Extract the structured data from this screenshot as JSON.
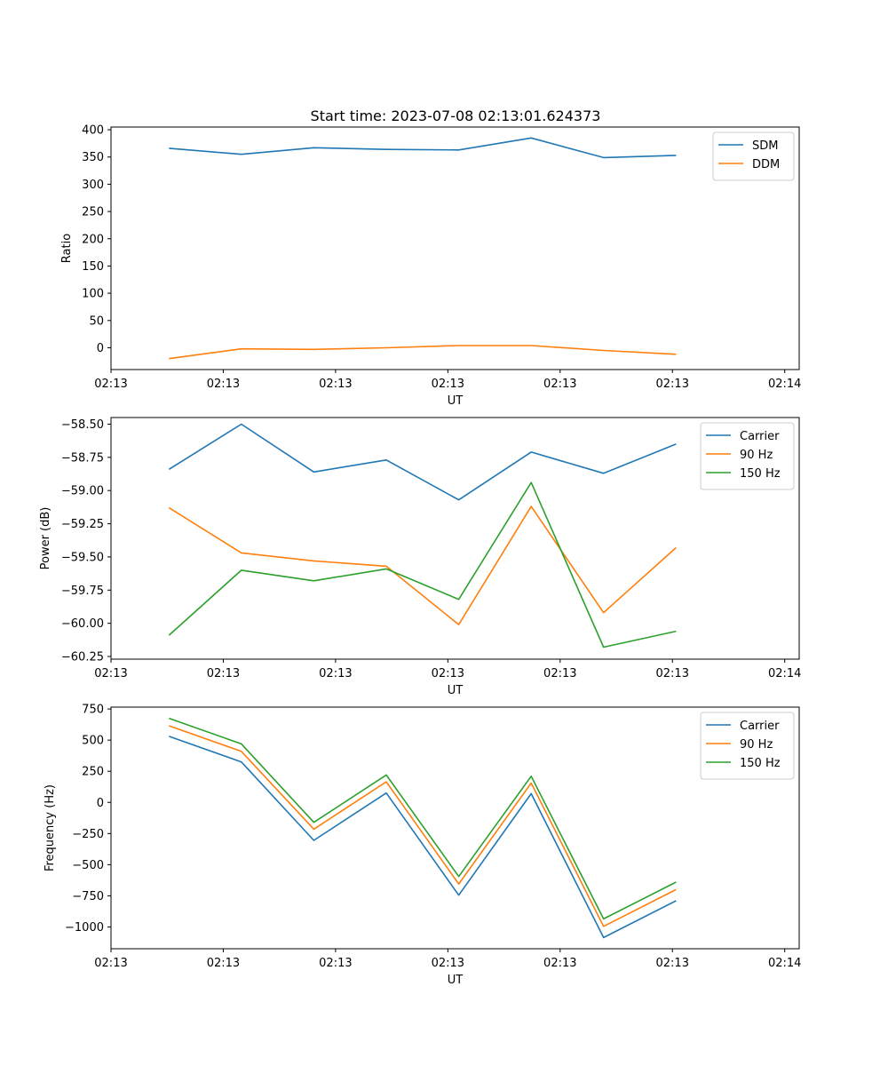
{
  "figure": {
    "title": "Start time: 2023-07-08 02:13:01.624373"
  },
  "chart_data": [
    {
      "type": "line",
      "title": "Start time: 2023-07-08 02:13:01.624373",
      "xlabel": "UT",
      "ylabel": "Ratio",
      "x": [
        1,
        2,
        3,
        4,
        5,
        6,
        7,
        8
      ],
      "xlim": [
        0.2,
        9.7
      ],
      "x_ticks": [
        0.2,
        1.75,
        3.3,
        4.85,
        6.4,
        7.95,
        9.5
      ],
      "x_tick_labels": [
        "02:13",
        "02:13",
        "02:13",
        "02:13",
        "02:13",
        "02:13",
        "02:14"
      ],
      "ylim": [
        -40,
        405
      ],
      "y_ticks": [
        400,
        350,
        300,
        250,
        200,
        150,
        100,
        50,
        0
      ],
      "y_tick_labels": [
        "400",
        "350",
        "300",
        "250",
        "200",
        "150",
        "100",
        "50",
        "0"
      ],
      "legend_position": "top-right",
      "series": [
        {
          "name": "SDM",
          "color": "#1f77b4",
          "values": [
            366,
            355,
            367,
            364,
            363,
            385,
            349,
            353
          ]
        },
        {
          "name": "DDM",
          "color": "#ff7f0e",
          "values": [
            -20,
            -2,
            -3,
            0,
            4,
            4,
            -5,
            -12
          ]
        }
      ]
    },
    {
      "type": "line",
      "xlabel": "UT",
      "ylabel": "Power (dB)",
      "x": [
        1,
        2,
        3,
        4,
        5,
        6,
        7,
        8
      ],
      "xlim": [
        0.2,
        9.7
      ],
      "x_ticks": [
        0.2,
        1.75,
        3.3,
        4.85,
        6.4,
        7.95,
        9.5
      ],
      "x_tick_labels": [
        "02:13",
        "02:13",
        "02:13",
        "02:13",
        "02:13",
        "02:13",
        "02:14"
      ],
      "ylim": [
        -60.27,
        -58.45
      ],
      "y_ticks": [
        -58.5,
        -58.75,
        -59.0,
        -59.25,
        -59.5,
        -59.75,
        -60.0,
        -60.25
      ],
      "y_tick_labels": [
        "−58.50",
        "−58.75",
        "−59.00",
        "−59.25",
        "−59.50",
        "−59.75",
        "−60.00",
        "−60.25"
      ],
      "legend_position": "top-right",
      "series": [
        {
          "name": "Carrier",
          "color": "#1f77b4",
          "values": [
            -58.84,
            -58.5,
            -58.86,
            -58.77,
            -59.07,
            -58.71,
            -58.87,
            -58.65
          ]
        },
        {
          "name": "90 Hz",
          "color": "#ff7f0e",
          "values": [
            -59.13,
            -59.47,
            -59.53,
            -59.57,
            -60.01,
            -59.12,
            -59.92,
            -59.43
          ]
        },
        {
          "name": "150 Hz",
          "color": "#2ca02c",
          "values": [
            -60.09,
            -59.6,
            -59.68,
            -59.59,
            -59.82,
            -58.94,
            -60.18,
            -60.06
          ]
        }
      ]
    },
    {
      "type": "line",
      "xlabel": "UT",
      "ylabel": "Frequency (Hz)",
      "x": [
        1,
        2,
        3,
        4,
        5,
        6,
        7,
        8
      ],
      "xlim": [
        0.2,
        9.7
      ],
      "x_ticks": [
        0.2,
        1.75,
        3.3,
        4.85,
        6.4,
        7.95,
        9.5
      ],
      "x_tick_labels": [
        "02:13",
        "02:13",
        "02:13",
        "02:13",
        "02:13",
        "02:13",
        "02:14"
      ],
      "ylim": [
        -1175,
        765
      ],
      "y_ticks": [
        750,
        500,
        250,
        0,
        -250,
        -500,
        -750,
        -1000
      ],
      "y_tick_labels": [
        "750",
        "500",
        "250",
        "0",
        "−250",
        "−500",
        "−750",
        "−1000"
      ],
      "legend_position": "top-right",
      "series": [
        {
          "name": "Carrier",
          "color": "#1f77b4",
          "values": [
            530,
            325,
            -305,
            75,
            -745,
            70,
            -1085,
            -790
          ]
        },
        {
          "name": "90 Hz",
          "color": "#ff7f0e",
          "values": [
            615,
            410,
            -215,
            165,
            -655,
            155,
            -995,
            -700
          ]
        },
        {
          "name": "150 Hz",
          "color": "#2ca02c",
          "values": [
            675,
            470,
            -160,
            220,
            -595,
            210,
            -935,
            -640
          ]
        }
      ]
    }
  ]
}
